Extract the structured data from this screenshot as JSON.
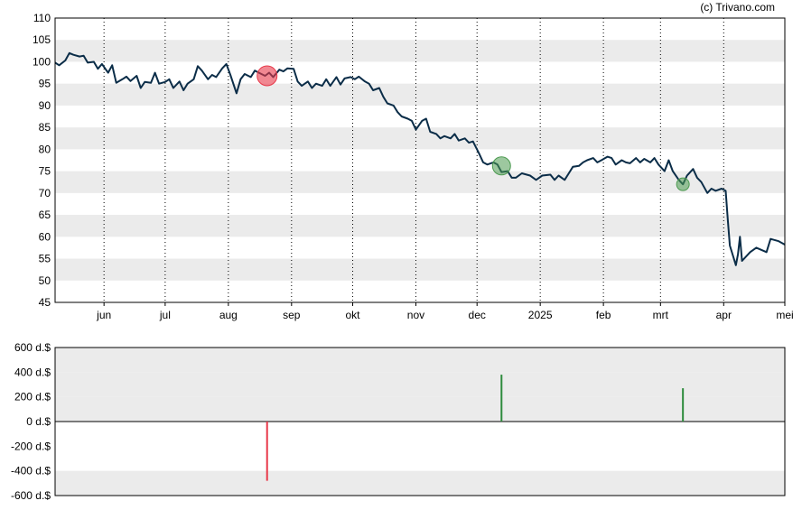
{
  "credit": "(c) Trivano.com",
  "colors": {
    "price_line": "#0b2d48",
    "band": "#ebebeb",
    "sell": "#e8394a",
    "buy": "#2e8b3d",
    "buy_marker": "#4c9a50"
  },
  "chart_data": [
    {
      "type": "line",
      "title": "",
      "xlabel": "",
      "ylabel": "",
      "ylim": [
        45,
        110
      ],
      "yticks": [
        45,
        50,
        55,
        60,
        65,
        70,
        75,
        80,
        85,
        90,
        95,
        100,
        105,
        110
      ],
      "ytick_labels": [
        "45",
        "50",
        "55",
        "60",
        "65",
        "70",
        "75",
        "80",
        "85",
        "90",
        "95",
        "100",
        "105",
        "110"
      ],
      "x_range": [
        "2024-05-08",
        "2025-05-01"
      ],
      "xticks": [
        {
          "label": "jun",
          "date": "2024-06-01"
        },
        {
          "label": "jul",
          "date": "2024-07-01"
        },
        {
          "label": "aug",
          "date": "2024-08-01"
        },
        {
          "label": "sep",
          "date": "2024-09-01"
        },
        {
          "label": "okt",
          "date": "2024-10-01"
        },
        {
          "label": "nov",
          "date": "2024-11-01"
        },
        {
          "label": "dec",
          "date": "2024-12-01"
        },
        {
          "label": "2025",
          "date": "2025-01-01"
        },
        {
          "label": "feb",
          "date": "2025-02-01"
        },
        {
          "label": "mrt",
          "date": "2025-03-01"
        },
        {
          "label": "apr",
          "date": "2025-04-01"
        },
        {
          "label": "mei",
          "date": "2025-05-01"
        }
      ],
      "grid": "vertical dotted month lines, alternating horizontal bands",
      "series": [
        {
          "points": [
            [
              "2024-05-08",
              99.8
            ],
            [
              "2024-05-10",
              99.2
            ],
            [
              "2024-05-13",
              100.3
            ],
            [
              "2024-05-15",
              102.0
            ],
            [
              "2024-05-17",
              101.6
            ],
            [
              "2024-05-20",
              101.2
            ],
            [
              "2024-05-22",
              101.4
            ],
            [
              "2024-05-24",
              99.8
            ],
            [
              "2024-05-27",
              100.0
            ],
            [
              "2024-05-29",
              98.4
            ],
            [
              "2024-05-31",
              99.5
            ],
            [
              "2024-06-03",
              97.5
            ],
            [
              "2024-06-05",
              99.2
            ],
            [
              "2024-06-07",
              95.2
            ],
            [
              "2024-06-10",
              96.0
            ],
            [
              "2024-06-12",
              96.6
            ],
            [
              "2024-06-14",
              95.6
            ],
            [
              "2024-06-17",
              96.8
            ],
            [
              "2024-06-19",
              94.0
            ],
            [
              "2024-06-21",
              95.4
            ],
            [
              "2024-06-24",
              95.2
            ],
            [
              "2024-06-26",
              97.5
            ],
            [
              "2024-06-28",
              95.0
            ],
            [
              "2024-07-01",
              95.4
            ],
            [
              "2024-07-03",
              96.0
            ],
            [
              "2024-07-05",
              94.0
            ],
            [
              "2024-07-08",
              95.5
            ],
            [
              "2024-07-10",
              93.5
            ],
            [
              "2024-07-12",
              95.0
            ],
            [
              "2024-07-15",
              96.0
            ],
            [
              "2024-07-17",
              99.0
            ],
            [
              "2024-07-19",
              98.0
            ],
            [
              "2024-07-22",
              96.0
            ],
            [
              "2024-07-24",
              97.0
            ],
            [
              "2024-07-26",
              96.5
            ],
            [
              "2024-07-29",
              98.5
            ],
            [
              "2024-07-31",
              99.5
            ],
            [
              "2024-08-02",
              97.0
            ],
            [
              "2024-08-05",
              92.8
            ],
            [
              "2024-08-07",
              96.0
            ],
            [
              "2024-08-09",
              97.2
            ],
            [
              "2024-08-12",
              96.5
            ],
            [
              "2024-08-14",
              98.0
            ],
            [
              "2024-08-16",
              97.5
            ],
            [
              "2024-08-19",
              96.8
            ],
            [
              "2024-08-21",
              97.5
            ],
            [
              "2024-08-23",
              96.5
            ],
            [
              "2024-08-26",
              98.2
            ],
            [
              "2024-08-28",
              97.8
            ],
            [
              "2024-08-30",
              98.5
            ],
            [
              "2024-09-02",
              98.4
            ],
            [
              "2024-09-04",
              95.5
            ],
            [
              "2024-09-06",
              94.5
            ],
            [
              "2024-09-09",
              95.5
            ],
            [
              "2024-09-11",
              94.0
            ],
            [
              "2024-09-13",
              95.0
            ],
            [
              "2024-09-16",
              94.5
            ],
            [
              "2024-09-18",
              96.0
            ],
            [
              "2024-09-20",
              94.5
            ],
            [
              "2024-09-23",
              96.5
            ],
            [
              "2024-09-25",
              94.8
            ],
            [
              "2024-09-27",
              96.2
            ],
            [
              "2024-09-30",
              96.5
            ],
            [
              "2024-10-02",
              96.0
            ],
            [
              "2024-10-04",
              96.6
            ],
            [
              "2024-10-07",
              95.5
            ],
            [
              "2024-10-09",
              95.0
            ],
            [
              "2024-10-11",
              93.5
            ],
            [
              "2024-10-14",
              94.0
            ],
            [
              "2024-10-16",
              92.0
            ],
            [
              "2024-10-18",
              90.5
            ],
            [
              "2024-10-21",
              90.0
            ],
            [
              "2024-10-23",
              88.5
            ],
            [
              "2024-10-25",
              87.5
            ],
            [
              "2024-10-28",
              87.0
            ],
            [
              "2024-10-30",
              86.5
            ],
            [
              "2024-11-01",
              84.5
            ],
            [
              "2024-11-04",
              86.5
            ],
            [
              "2024-11-06",
              87.0
            ],
            [
              "2024-11-08",
              84.0
            ],
            [
              "2024-11-11",
              83.5
            ],
            [
              "2024-11-13",
              82.5
            ],
            [
              "2024-11-15",
              83.0
            ],
            [
              "2024-11-18",
              82.5
            ],
            [
              "2024-11-20",
              83.5
            ],
            [
              "2024-11-22",
              82.0
            ],
            [
              "2024-11-25",
              82.5
            ],
            [
              "2024-11-27",
              81.5
            ],
            [
              "2024-11-29",
              81.8
            ],
            [
              "2024-12-02",
              79.0
            ],
            [
              "2024-12-04",
              77.0
            ],
            [
              "2024-12-06",
              76.5
            ],
            [
              "2024-12-09",
              77.0
            ],
            [
              "2024-12-11",
              76.5
            ],
            [
              "2024-12-13",
              74.8
            ],
            [
              "2024-12-16",
              75.0
            ],
            [
              "2024-12-18",
              73.5
            ],
            [
              "2024-12-20",
              73.5
            ],
            [
              "2024-12-23",
              74.5
            ],
            [
              "2024-12-27",
              74.0
            ],
            [
              "2024-12-30",
              73.0
            ],
            [
              "2025-01-02",
              74.0
            ],
            [
              "2025-01-06",
              74.2
            ],
            [
              "2025-01-08",
              73.0
            ],
            [
              "2025-01-10",
              74.0
            ],
            [
              "2025-01-13",
              73.0
            ],
            [
              "2025-01-15",
              74.5
            ],
            [
              "2025-01-17",
              76.0
            ],
            [
              "2025-01-20",
              76.2
            ],
            [
              "2025-01-22",
              77.0
            ],
            [
              "2025-01-24",
              77.5
            ],
            [
              "2025-01-27",
              78.0
            ],
            [
              "2025-01-29",
              77.0
            ],
            [
              "2025-01-31",
              77.5
            ],
            [
              "2025-02-03",
              78.3
            ],
            [
              "2025-02-05",
              78.0
            ],
            [
              "2025-02-07",
              76.5
            ],
            [
              "2025-02-10",
              77.5
            ],
            [
              "2025-02-12",
              77.0
            ],
            [
              "2025-02-14",
              76.8
            ],
            [
              "2025-02-17",
              78.0
            ],
            [
              "2025-02-19",
              77.0
            ],
            [
              "2025-02-21",
              77.8
            ],
            [
              "2025-02-24",
              77.0
            ],
            [
              "2025-02-26",
              78.0
            ],
            [
              "2025-02-28",
              76.5
            ],
            [
              "2025-03-03",
              75.0
            ],
            [
              "2025-03-05",
              77.5
            ],
            [
              "2025-03-07",
              75.0
            ],
            [
              "2025-03-10",
              73.0
            ],
            [
              "2025-03-12",
              72.0
            ],
            [
              "2025-03-14",
              74.0
            ],
            [
              "2025-03-17",
              75.5
            ],
            [
              "2025-03-19",
              73.5
            ],
            [
              "2025-03-21",
              72.5
            ],
            [
              "2025-03-24",
              70.0
            ],
            [
              "2025-03-26",
              71.0
            ],
            [
              "2025-03-28",
              70.5
            ],
            [
              "2025-03-31",
              71.0
            ],
            [
              "2025-04-02",
              70.5
            ],
            [
              "2025-04-03",
              64.0
            ],
            [
              "2025-04-04",
              58.0
            ],
            [
              "2025-04-07",
              53.5
            ],
            [
              "2025-04-08",
              56.0
            ],
            [
              "2025-04-09",
              60.0
            ],
            [
              "2025-04-10",
              54.5
            ],
            [
              "2025-04-14",
              56.5
            ],
            [
              "2025-04-17",
              57.5
            ],
            [
              "2025-04-22",
              56.5
            ],
            [
              "2025-04-24",
              59.5
            ],
            [
              "2025-04-28",
              59.0
            ],
            [
              "2025-05-01",
              58.2
            ]
          ]
        }
      ],
      "markers": [
        {
          "date": "2024-08-20",
          "value": 96.8,
          "kind": "sell"
        },
        {
          "date": "2024-12-13",
          "value": 76.2,
          "kind": "buy"
        },
        {
          "date": "2025-03-12",
          "value": 72.0,
          "kind": "buy"
        }
      ]
    },
    {
      "type": "bar",
      "title": "",
      "xlabel": "",
      "ylabel": "",
      "ylim": [
        -600,
        600
      ],
      "yticks": [
        -600,
        -400,
        -200,
        0,
        200,
        400,
        600
      ],
      "ytick_labels": [
        "-600 d.$",
        "-400 d.$",
        "-200 d.$",
        "0 d.$",
        "200 d.$",
        "400 d.$",
        "600 d.$"
      ],
      "x_range": [
        "2024-05-08",
        "2025-05-01"
      ],
      "bars": [
        {
          "date": "2024-08-20",
          "value": -480,
          "kind": "sell"
        },
        {
          "date": "2024-12-13",
          "value": 380,
          "kind": "buy"
        },
        {
          "date": "2025-03-12",
          "value": 270,
          "kind": "buy"
        }
      ]
    }
  ]
}
